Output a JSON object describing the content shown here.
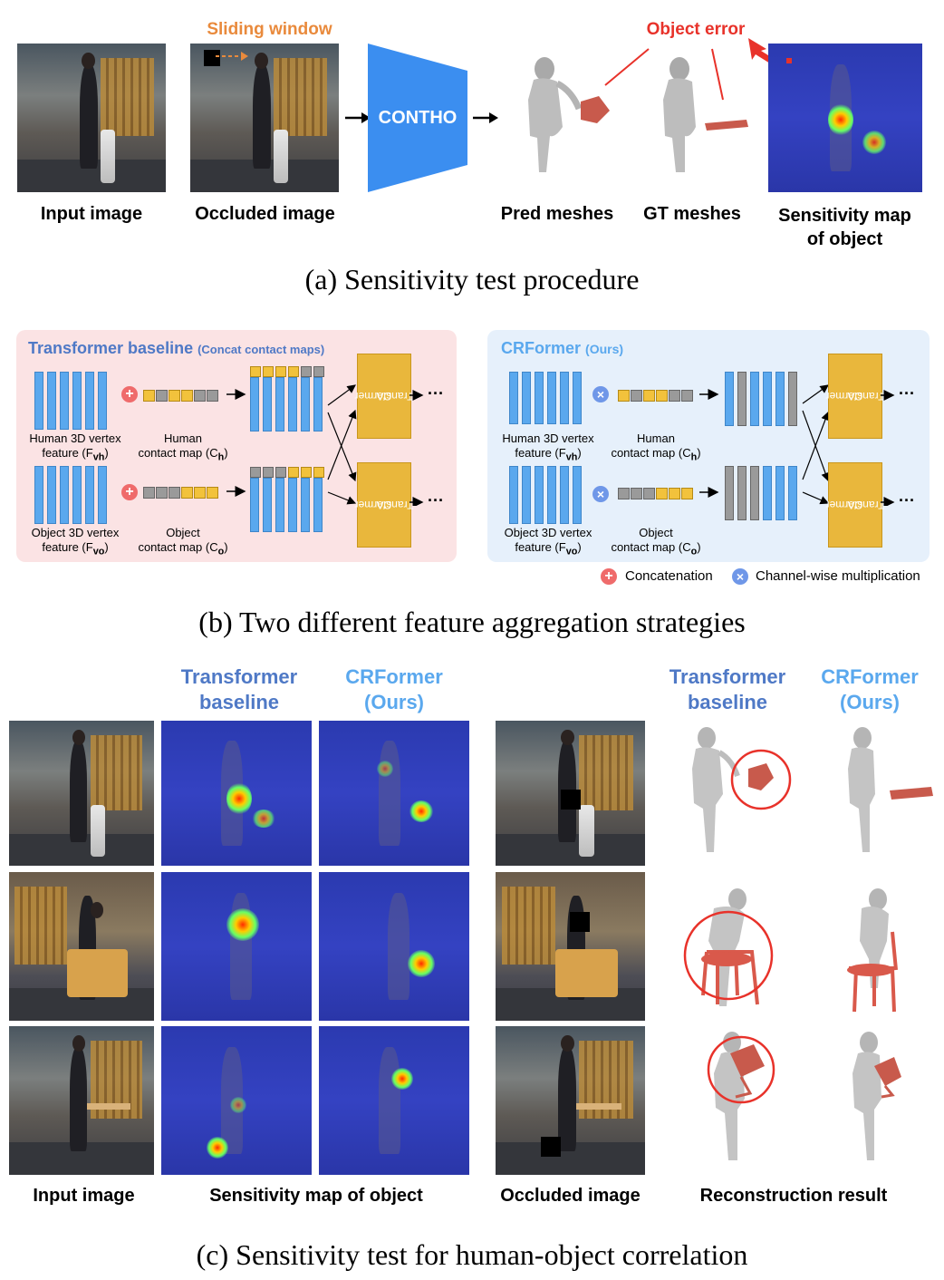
{
  "section_a": {
    "sliding_window": "Sliding window",
    "object_error": "Object error",
    "contho": "CONTHO",
    "input_image": "Input image",
    "occluded_image": "Occluded image",
    "pred_meshes": "Pred meshes",
    "gt_meshes": "GT meshes",
    "sensitivity_map_line1": "Sensitivity map",
    "sensitivity_map_line2": "of object",
    "caption": "(a) Sensitivity test procedure"
  },
  "section_b": {
    "left_title": "Transformer baseline",
    "left_subtitle": "(Concat contact maps)",
    "right_title": "CRFormer",
    "right_subtitle": "(Ours)",
    "human_feat_1": "Human 3D vertex",
    "human_feat_2": "feature (F",
    "human_feat_sub": "vh",
    "human_cm_1": "Human",
    "human_cm_2": "contact map (C",
    "human_cm_sub": "h",
    "object_feat_1": "Object 3D vertex",
    "object_feat_2": "feature (F",
    "object_feat_sub": "vo",
    "object_cm_1": "Object",
    "object_cm_2": "contact map (C",
    "object_cm_sub": "o",
    "ca_line1": "CA",
    "ca_line2": "Transformer",
    "ellipsis": "···",
    "legend_concat": "Concatenation",
    "legend_mult": "Channel-wise multiplication",
    "caption": "(b) Two different feature aggregation strategies"
  },
  "section_c": {
    "hdr_baseline_1": "Transformer",
    "hdr_baseline_2": "baseline",
    "hdr_ours_1": "CRFormer",
    "hdr_ours_2": "(Ours)",
    "input_image": "Input image",
    "sensitivity_map": "Sensitivity map of object",
    "occluded_image": "Occluded image",
    "reconstruction": "Reconstruction result",
    "caption": "(c) Sensitivity test for human-object correlation"
  },
  "colors": {
    "baseline_blue": "#4f79c6",
    "ours_blue": "#5aa8ee",
    "error_red": "#e8322a",
    "orange": "#e98a3c",
    "contho_blue": "#3b8ef0",
    "pink_panel": "#fbe3e4",
    "blue_panel": "#e6f0fb"
  }
}
